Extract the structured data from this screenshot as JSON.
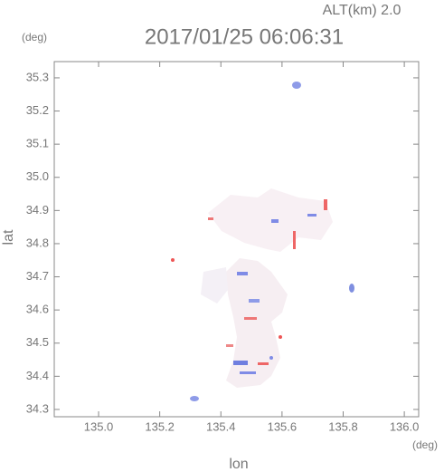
{
  "chart_data": {
    "type": "map",
    "title": "2017/01/25 06:06:31",
    "subtitle": "ALT(km) 2.0",
    "x_label": "lon",
    "y_label": "lat",
    "x_unit": "(deg)",
    "y_unit": "(deg)",
    "xlim": [
      134.855,
      136.047
    ],
    "ylim": [
      34.278,
      35.349
    ],
    "xticks": [
      {
        "value": 135,
        "label": "135.0"
      },
      135.2,
      135.4,
      135.6,
      135.8,
      {
        "value": 136,
        "label": "136.0"
      }
    ],
    "yticks": [
      34.3,
      34.4,
      34.5,
      34.6,
      34.7,
      34.8,
      34.9,
      {
        "value": 35,
        "label": "35.0"
      },
      35.1,
      35.2,
      35.3
    ]
  }
}
